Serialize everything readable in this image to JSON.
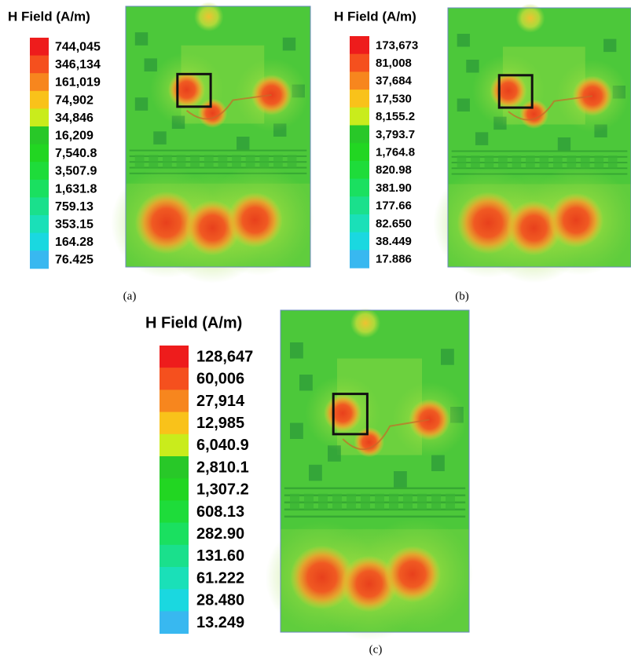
{
  "panels": [
    {
      "label": "(a)",
      "legend_title": "H Field (A/m)",
      "legend_labels": [
        "744,045",
        "346,134",
        "161,019",
        "74,902",
        "34,846",
        "16,209",
        "7,540.8",
        "3,507.9",
        "1,631.8",
        "759.13",
        "353.15",
        "164.28",
        "76.425"
      ]
    },
    {
      "label": "(b)",
      "legend_title": "H Field (A/m)",
      "legend_labels": [
        "173,673",
        "81,008",
        "37,684",
        "17,530",
        "8,155.2",
        "3,793.7",
        "1,764.8",
        "820.98",
        "381.90",
        "177.66",
        "82.650",
        "38.449",
        "17.886"
      ]
    },
    {
      "label": "(c)",
      "legend_title": "H Field (A/m)",
      "legend_labels": [
        "128,647",
        "60,006",
        "27,914",
        "12,985",
        "6,040.9",
        "2,810.1",
        "1,307.2",
        "608.13",
        "282.90",
        "131.60",
        "61.222",
        "28.480",
        "13.249"
      ]
    }
  ]
}
